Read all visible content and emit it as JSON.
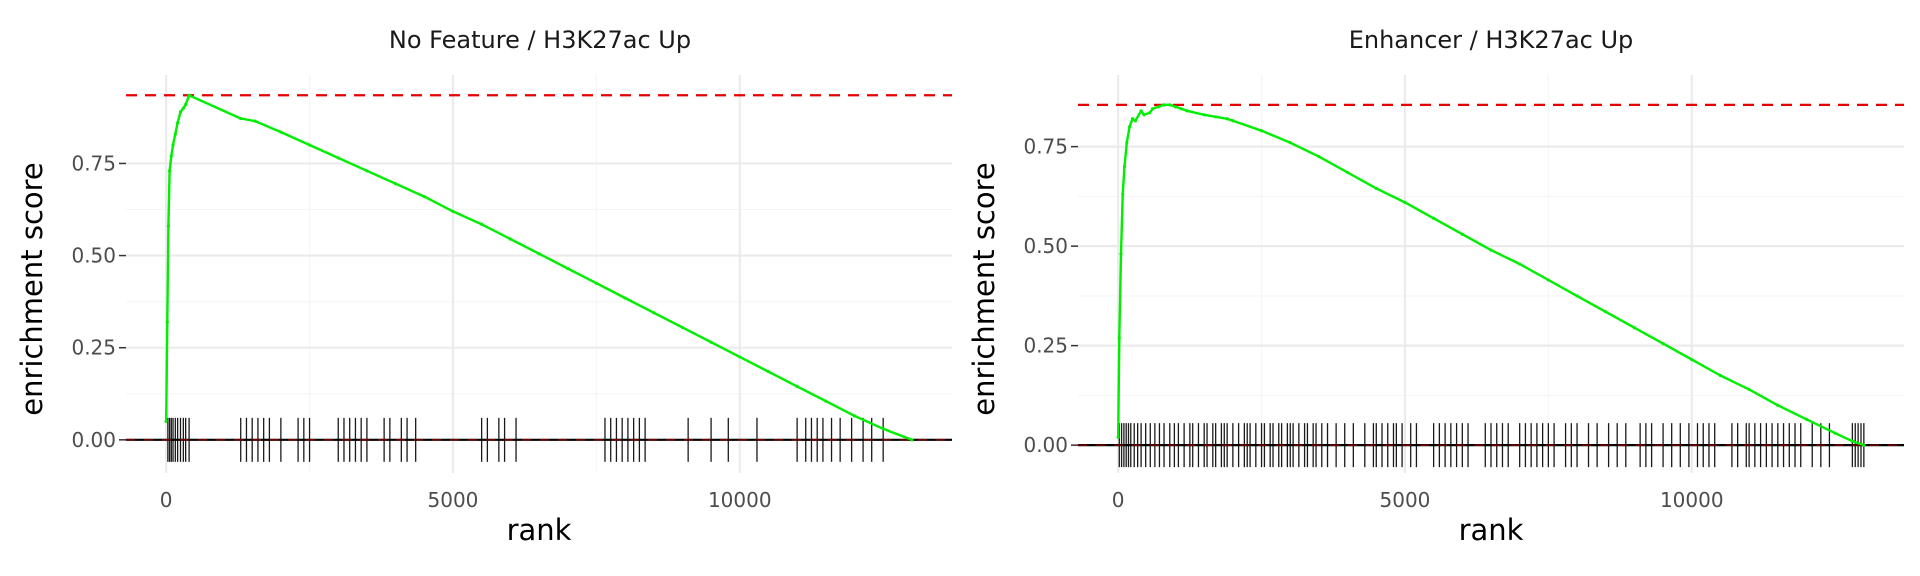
{
  "chart_data": [
    {
      "type": "line",
      "title": "No Feature / H3K27ac Up",
      "xlabel": "rank",
      "ylabel": "enrichment score",
      "xlim": [
        -700,
        13700
      ],
      "ylim": [
        -0.09,
        0.99
      ],
      "x_ticks": [
        0,
        5000,
        10000
      ],
      "y_ticks": [
        0,
        0.25,
        0.5,
        0.75
      ],
      "x_tick_labels": [
        "0",
        "5000",
        "10000"
      ],
      "y_tick_labels": [
        "0.00",
        "0.25",
        "0.50",
        "0.75"
      ],
      "grid": true,
      "max_es": 0.935,
      "series": [
        {
          "color": "#00ee00",
          "x": [
            0,
            20,
            40,
            60,
            90,
            120,
            160,
            200,
            250,
            300,
            340,
            400,
            1300,
            1550,
            2000,
            2500,
            3000,
            3500,
            4000,
            4500,
            5000,
            5500,
            6000,
            6500,
            7000,
            7500,
            8000,
            8500,
            9000,
            9500,
            10000,
            10500,
            11000,
            11500,
            12000,
            12500,
            13000
          ],
          "y": [
            0.05,
            0.32,
            0.58,
            0.73,
            0.77,
            0.8,
            0.83,
            0.86,
            0.89,
            0.9,
            0.91,
            0.935,
            0.872,
            0.865,
            0.835,
            0.8,
            0.765,
            0.73,
            0.695,
            0.66,
            0.62,
            0.585,
            0.545,
            0.505,
            0.465,
            0.425,
            0.385,
            0.345,
            0.305,
            0.265,
            0.225,
            0.185,
            0.145,
            0.105,
            0.065,
            0.03,
            0.0
          ]
        }
      ],
      "hits": [
        30,
        60,
        90,
        120,
        160,
        200,
        250,
        300,
        340,
        400,
        1300,
        1400,
        1500,
        1600,
        1700,
        1800,
        2000,
        2300,
        2400,
        2500,
        3000,
        3100,
        3200,
        3300,
        3400,
        3500,
        3800,
        3900,
        4100,
        4200,
        4350,
        5500,
        5600,
        5800,
        5900,
        6100,
        7650,
        7750,
        7850,
        7950,
        8050,
        8150,
        8250,
        8350,
        9100,
        9500,
        9800,
        10300,
        11000,
        11150,
        11250,
        11350,
        11450,
        11600,
        11750,
        11950,
        12150,
        12300,
        12500
      ]
    },
    {
      "type": "line",
      "title": "Enhancer / H3K27ac Up",
      "xlabel": "rank",
      "ylabel": "enrichment score",
      "xlim": [
        -700,
        13700
      ],
      "ylim": [
        -0.07,
        0.93
      ],
      "x_ticks": [
        0,
        5000,
        10000
      ],
      "y_ticks": [
        0,
        0.25,
        0.5,
        0.75
      ],
      "x_tick_labels": [
        "0",
        "5000",
        "10000"
      ],
      "y_tick_labels": [
        "0.00",
        "0.25",
        "0.50",
        "0.75"
      ],
      "grid": true,
      "max_es": 0.855,
      "series": [
        {
          "color": "#00ee00",
          "x": [
            0,
            20,
            50,
            80,
            110,
            150,
            200,
            250,
            300,
            400,
            450,
            550,
            600,
            700,
            800,
            900,
            1000,
            1100,
            1200,
            1500,
            1700,
            1900,
            2000,
            2500,
            3000,
            3500,
            4000,
            4500,
            5000,
            5500,
            6000,
            6500,
            7000,
            7500,
            8000,
            8500,
            9000,
            9500,
            10000,
            10500,
            11000,
            11500,
            12000,
            12500,
            12800,
            13000
          ],
          "y": [
            0.02,
            0.27,
            0.48,
            0.63,
            0.7,
            0.76,
            0.8,
            0.82,
            0.815,
            0.84,
            0.83,
            0.835,
            0.845,
            0.85,
            0.855,
            0.855,
            0.85,
            0.845,
            0.84,
            0.83,
            0.825,
            0.82,
            0.815,
            0.79,
            0.76,
            0.725,
            0.685,
            0.645,
            0.61,
            0.57,
            0.53,
            0.49,
            0.455,
            0.415,
            0.375,
            0.335,
            0.295,
            0.255,
            0.215,
            0.175,
            0.14,
            0.1,
            0.065,
            0.03,
            0.01,
            0.0
          ]
        }
      ],
      "hits": [
        20,
        60,
        100,
        140,
        180,
        220,
        280,
        340,
        400,
        480,
        560,
        640,
        720,
        800,
        900,
        980,
        1050,
        1150,
        1250,
        1300,
        1400,
        1500,
        1550,
        1650,
        1700,
        1800,
        1850,
        1900,
        2000,
        2100,
        2200,
        2250,
        2300,
        2400,
        2500,
        2550,
        2650,
        2700,
        2800,
        2850,
        2950,
        3000,
        3050,
        3150,
        3250,
        3300,
        3400,
        3450,
        3550,
        3650,
        3800,
        3950,
        4100,
        4300,
        4450,
        4500,
        4600,
        4700,
        4800,
        4850,
        4950,
        5100,
        5200,
        5500,
        5600,
        5700,
        5800,
        5900,
        6000,
        6100,
        6400,
        6500,
        6600,
        6700,
        6800,
        7000,
        7100,
        7200,
        7300,
        7400,
        7500,
        7600,
        7800,
        7900,
        8000,
        8200,
        8350,
        8550,
        8700,
        8850,
        9100,
        9200,
        9300,
        9500,
        9650,
        9800,
        9950,
        10100,
        10200,
        10300,
        10400,
        10700,
        10800,
        10950,
        11000,
        11100,
        11200,
        11300,
        11400,
        11500,
        11600,
        11700,
        11800,
        11900,
        12100,
        12250,
        12400,
        12800,
        12850,
        12900,
        12950,
        13000
      ]
    }
  ]
}
